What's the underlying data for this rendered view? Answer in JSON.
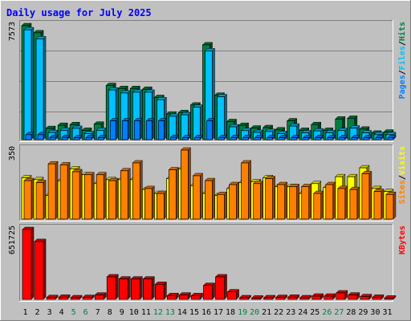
{
  "title": "Daily usage for July 2025",
  "colors": {
    "background": "#C0C0C0",
    "plot": "#C0C0C0",
    "grid": "#808080",
    "title": "#0000FF",
    "hits": "#008040",
    "files": "#00C0FF",
    "pages": "#0080FF",
    "visits": "#FFFF00",
    "sites": "#FF8000",
    "kbytes": "#FF0000",
    "weekday_label": "#000000",
    "weekend_label": "#008040"
  },
  "chart_data": [
    {
      "type": "bar",
      "name": "hits-files-pages",
      "axis_max_label": "7573",
      "ymax": 7573,
      "legend": [
        "Pages",
        "Files",
        "Hits"
      ],
      "categories": [
        1,
        2,
        3,
        4,
        5,
        6,
        7,
        8,
        9,
        10,
        11,
        12,
        13,
        14,
        15,
        16,
        17,
        18,
        19,
        20,
        21,
        22,
        23,
        24,
        25,
        26,
        27,
        28,
        29,
        30,
        31
      ],
      "weekend_days": [
        5,
        6,
        12,
        13,
        19,
        20,
        26,
        27
      ],
      "series": [
        {
          "name": "Hits",
          "values": [
            7573,
            7100,
            740,
            950,
            1000,
            620,
            1030,
            3600,
            3400,
            3400,
            3350,
            2800,
            1700,
            1800,
            2300,
            6300,
            2950,
            1200,
            950,
            770,
            800,
            650,
            1250,
            620,
            1000,
            620,
            1370,
            1420,
            700,
            430,
            500
          ]
        },
        {
          "name": "Files",
          "values": [
            7300,
            6700,
            470,
            620,
            750,
            400,
            620,
            3300,
            3100,
            3150,
            3150,
            2650,
            1550,
            1650,
            2150,
            5900,
            2850,
            850,
            600,
            480,
            540,
            400,
            900,
            450,
            580,
            460,
            600,
            770,
            450,
            330,
            330
          ]
        },
        {
          "name": "Pages",
          "values": [
            330,
            330,
            150,
            150,
            130,
            140,
            130,
            1250,
            1250,
            1250,
            1250,
            1250,
            150,
            130,
            140,
            1250,
            140,
            140,
            140,
            140,
            130,
            130,
            130,
            130,
            140,
            130,
            140,
            130,
            130,
            130,
            130
          ]
        }
      ]
    },
    {
      "type": "bar",
      "name": "visits-sites",
      "axis_max_label": "350",
      "ymax": 350,
      "legend": [
        "Sites",
        "Visits"
      ],
      "categories": [
        1,
        2,
        3,
        4,
        5,
        6,
        7,
        8,
        9,
        10,
        11,
        12,
        13,
        14,
        15,
        16,
        17,
        18,
        19,
        20,
        21,
        22,
        23,
        24,
        25,
        26,
        27,
        28,
        29,
        30,
        31
      ],
      "weekend_days": [
        5,
        6,
        12,
        13,
        19,
        20,
        26,
        27
      ],
      "series": [
        {
          "name": "Visits",
          "values": [
            210,
            200,
            120,
            195,
            255,
            225,
            180,
            200,
            200,
            200,
            150,
            130,
            205,
            255,
            170,
            130,
            120,
            155,
            185,
            190,
            210,
            165,
            165,
            130,
            180,
            160,
            215,
            215,
            260,
            155,
            140
          ]
        },
        {
          "name": "Sites",
          "values": [
            195,
            185,
            280,
            275,
            240,
            225,
            225,
            195,
            245,
            285,
            155,
            130,
            250,
            350,
            220,
            195,
            125,
            175,
            285,
            180,
            205,
            175,
            165,
            165,
            130,
            175,
            155,
            150,
            230,
            140,
            125
          ]
        }
      ]
    },
    {
      "type": "bar",
      "name": "kbytes",
      "axis_max_label": "651725",
      "ymax": 651725,
      "legend": [
        "KBytes"
      ],
      "categories": [
        1,
        2,
        3,
        4,
        5,
        6,
        7,
        8,
        9,
        10,
        11,
        12,
        13,
        14,
        15,
        16,
        17,
        18,
        19,
        20,
        21,
        22,
        23,
        24,
        25,
        26,
        27,
        28,
        29,
        30,
        31
      ],
      "weekend_days": [
        5,
        6,
        12,
        13,
        19,
        20,
        26,
        27
      ],
      "series": [
        {
          "name": "KBytes",
          "values": [
            651725,
            540000,
            17000,
            20000,
            15000,
            18000,
            40000,
            210000,
            190000,
            190000,
            190000,
            140000,
            35000,
            40000,
            35000,
            130000,
            210000,
            70000,
            15000,
            12000,
            15000,
            18000,
            20000,
            15000,
            30000,
            30000,
            60000,
            40000,
            25000,
            20000,
            12000
          ]
        }
      ]
    }
  ]
}
